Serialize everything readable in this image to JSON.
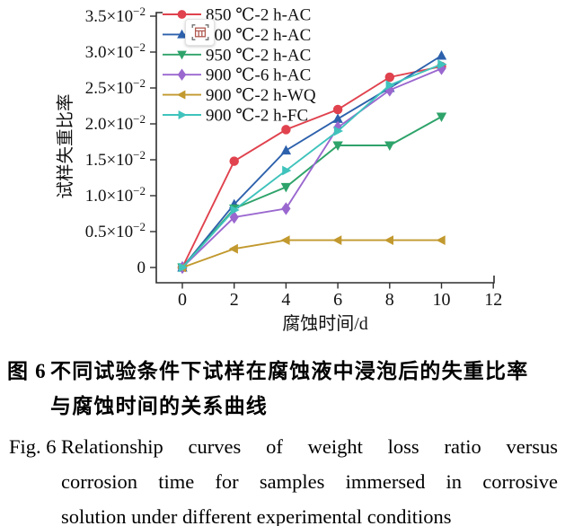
{
  "overlay_icon": {
    "name": "table-capture-icon"
  },
  "chart_data": {
    "type": "line",
    "title": "",
    "xlabel": "腐蚀时间/d",
    "ylabel": "试样失重比率",
    "x": [
      0,
      2,
      4,
      6,
      8,
      10
    ],
    "xlim": [
      0,
      12
    ],
    "x_ticks": [
      "0",
      "2",
      "4",
      "6",
      "8",
      "10",
      "12"
    ],
    "y_ticks": [
      {
        "v": 0.0,
        "label": "0"
      },
      {
        "v": 0.5,
        "label": "0.5×10⁻²"
      },
      {
        "v": 1.0,
        "label": "1.0×10⁻²"
      },
      {
        "v": 1.5,
        "label": "1.5×10⁻²"
      },
      {
        "v": 2.0,
        "label": "2.0×10⁻²"
      },
      {
        "v": 2.5,
        "label": "2.5×10⁻²"
      },
      {
        "v": 3.0,
        "label": "3.0×10⁻²"
      },
      {
        "v": 3.5,
        "label": "3.5×10⁻²"
      }
    ],
    "values_scale": "×10⁻²",
    "grid": false,
    "legend_position": "top-left-inside",
    "series": [
      {
        "name": "850 ℃-2 h-AC",
        "marker": "circle",
        "color": "#e0424e",
        "values": [
          0,
          1.48,
          1.92,
          2.2,
          2.65,
          2.8
        ]
      },
      {
        "name": "900 ℃-2 h-AC",
        "marker": "triangle-up",
        "color": "#2d61ac",
        "values": [
          0,
          0.88,
          1.63,
          2.07,
          2.5,
          2.95
        ]
      },
      {
        "name": "950 ℃-2 h-AC",
        "marker": "triangle-down",
        "color": "#2ea36a",
        "values": [
          0,
          0.82,
          1.12,
          1.7,
          1.7,
          2.1
        ]
      },
      {
        "name": "900 ℃-6 h-AC",
        "marker": "diamond",
        "color": "#9a67cf",
        "values": [
          0,
          0.7,
          0.82,
          1.95,
          2.47,
          2.77
        ]
      },
      {
        "name": "900 ℃-2 h-WQ",
        "marker": "triangle-left",
        "color": "#c2992e",
        "values": [
          0,
          0.26,
          0.38,
          0.38,
          0.38,
          0.38
        ]
      },
      {
        "name": "900 ℃-2 h-FC",
        "marker": "triangle-right",
        "color": "#3fc3bc",
        "values": [
          0,
          0.8,
          1.35,
          1.9,
          2.54,
          2.83
        ]
      }
    ]
  },
  "caption_zh": {
    "label": "图 6",
    "lines": [
      "不同试验条件下试样在腐蚀液中浸泡后的失重比率",
      "与腐蚀时间的关系曲线"
    ]
  },
  "caption_en": {
    "label": "Fig. 6",
    "lines": [
      "Relationship curves of weight loss ratio versus",
      "corrosion time for samples immersed in corrosive",
      "solution under different experimental conditions"
    ]
  }
}
